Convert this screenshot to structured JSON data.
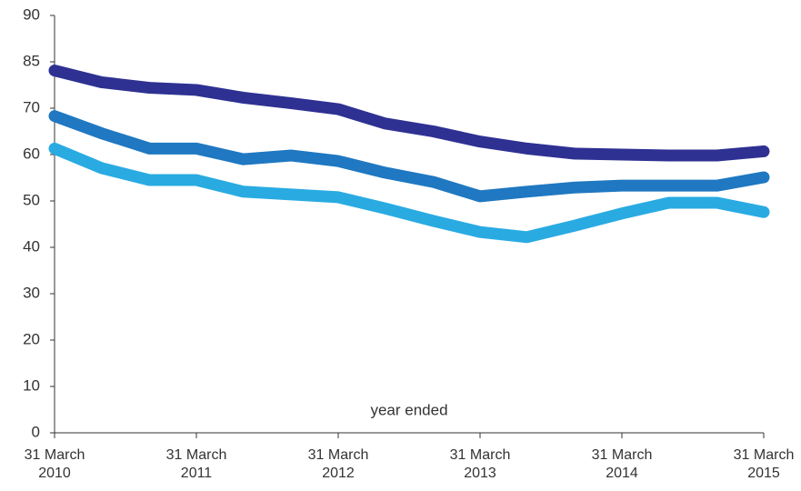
{
  "chart_data": {
    "type": "line",
    "annotation": "year ended",
    "x": [
      2010,
      2010.33,
      2010.67,
      2011,
      2011.33,
      2011.67,
      2012,
      2012.33,
      2012.67,
      2013,
      2013.33,
      2013.67,
      2014,
      2014.33,
      2014.67,
      2015
    ],
    "xlim": [
      2010,
      2015
    ],
    "xticks": [
      {
        "value": 2010,
        "label": "31 March 2010"
      },
      {
        "value": 2011,
        "label": "31 March 2011"
      },
      {
        "value": 2012,
        "label": "31 March 2012"
      },
      {
        "value": 2013,
        "label": "31 March 2013"
      },
      {
        "value": 2014,
        "label": "31 March 2014"
      },
      {
        "value": 2015,
        "label": "31 March 2015"
      }
    ],
    "ylim": [
      0,
      90
    ],
    "yticks": [
      0,
      10,
      20,
      30,
      40,
      50,
      60,
      70,
      85,
      90
    ],
    "series": [
      {
        "color": "#2e3192",
        "values": [
          82.2,
          78.4,
          76.6,
          75.9,
          73.4,
          71.6,
          69.8,
          66.7,
          65.0,
          62.8,
          61.3,
          60.2,
          60.0,
          59.8,
          59.8,
          60.7
        ]
      },
      {
        "color": "#1f78c1",
        "values": [
          68.3,
          64.6,
          61.3,
          61.3,
          59.0,
          59.8,
          58.6,
          56.1,
          54.1,
          51.0,
          52.0,
          52.9,
          53.3,
          53.3,
          53.3,
          55.1
        ]
      },
      {
        "color": "#29abe2",
        "values": [
          61.3,
          57.1,
          54.5,
          54.5,
          52.0,
          51.4,
          50.8,
          48.4,
          45.7,
          43.3,
          42.2,
          44.7,
          47.3,
          49.6,
          49.6,
          47.6
        ]
      }
    ]
  }
}
